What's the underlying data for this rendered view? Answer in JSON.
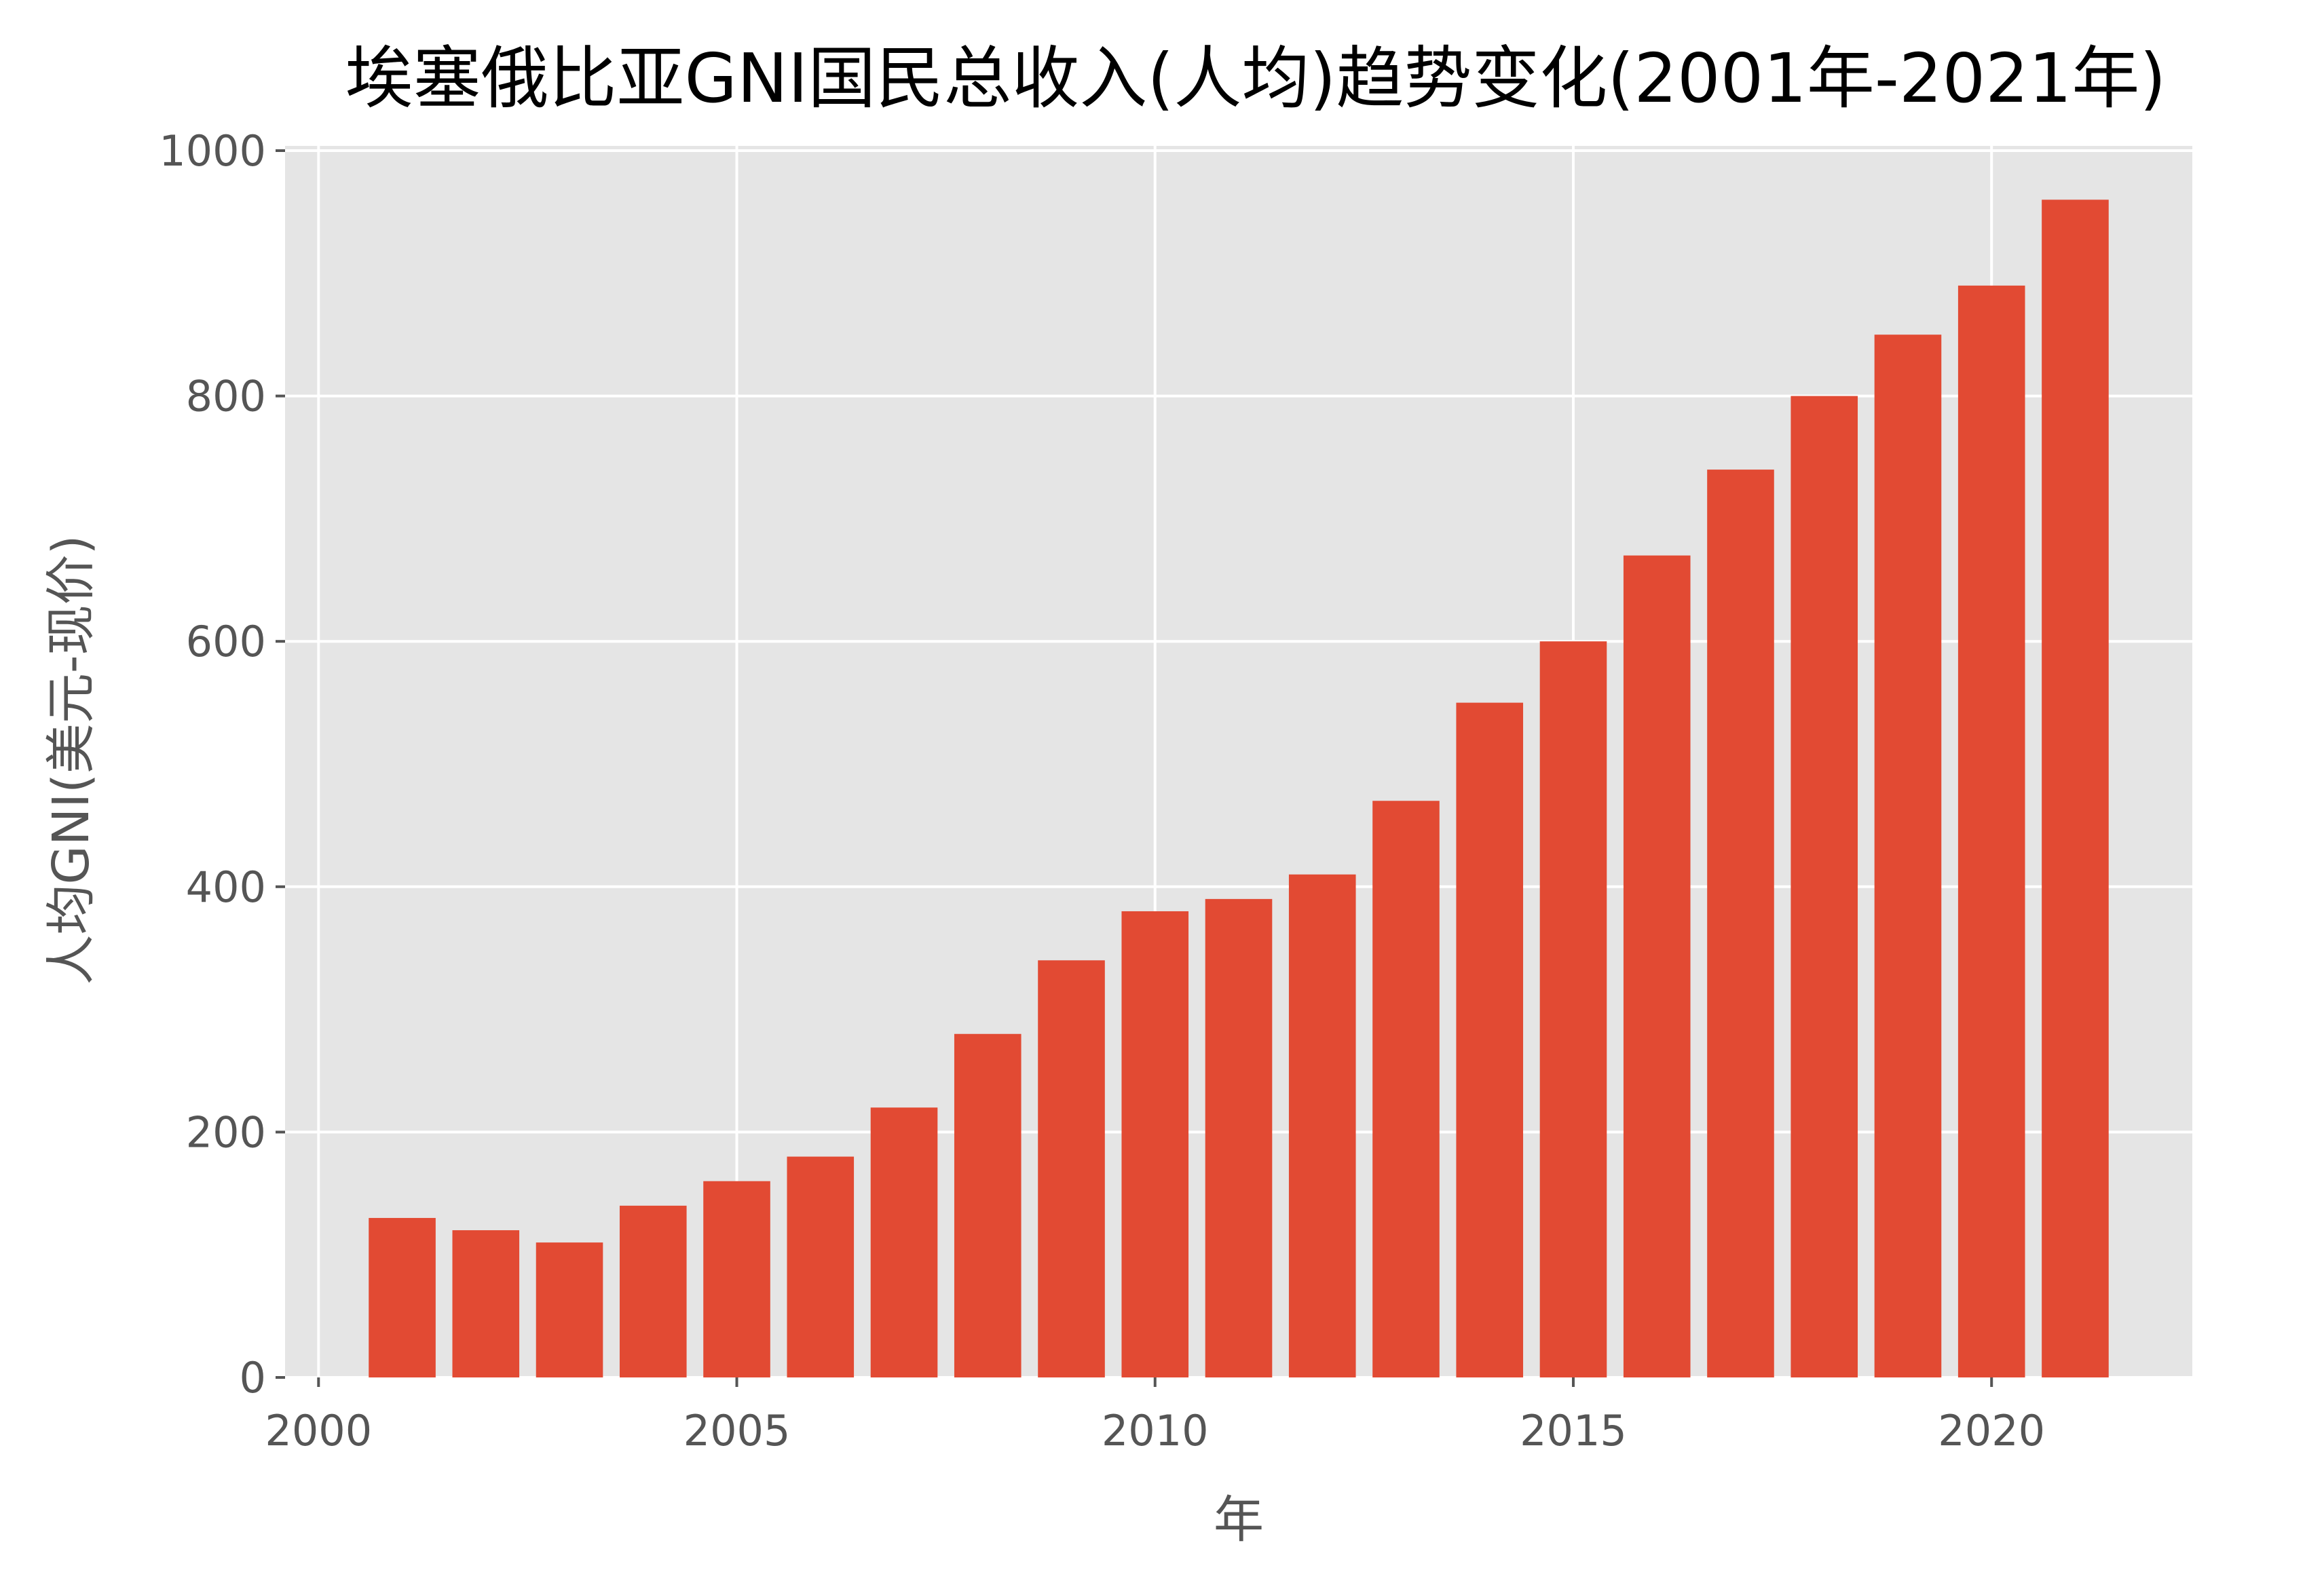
{
  "chart_data": {
    "type": "bar",
    "title": "埃塞俄比亚GNI国民总收入(人均)趋势变化(2001年-2021年)",
    "xlabel": "年",
    "ylabel": "人均GNI(美元-现价)",
    "categories": [
      2001,
      2002,
      2003,
      2004,
      2005,
      2006,
      2007,
      2008,
      2009,
      2010,
      2011,
      2012,
      2013,
      2014,
      2015,
      2016,
      2017,
      2018,
      2019,
      2020,
      2021
    ],
    "values": [
      130,
      120,
      110,
      140,
      160,
      180,
      220,
      280,
      340,
      380,
      390,
      410,
      470,
      550,
      600,
      670,
      740,
      800,
      850,
      890,
      960
    ],
    "xticks": [
      2000,
      2005,
      2010,
      2015,
      2020
    ],
    "yticks": [
      0,
      200,
      400,
      600,
      800,
      1000
    ],
    "xlim": [
      1999.6,
      2022.4
    ],
    "ylim": [
      0,
      1000
    ],
    "grid": true,
    "legend": null,
    "colors": {
      "bar": "#E24A33",
      "background": "#E5E5E5",
      "grid": "#FFFFFF"
    }
  }
}
